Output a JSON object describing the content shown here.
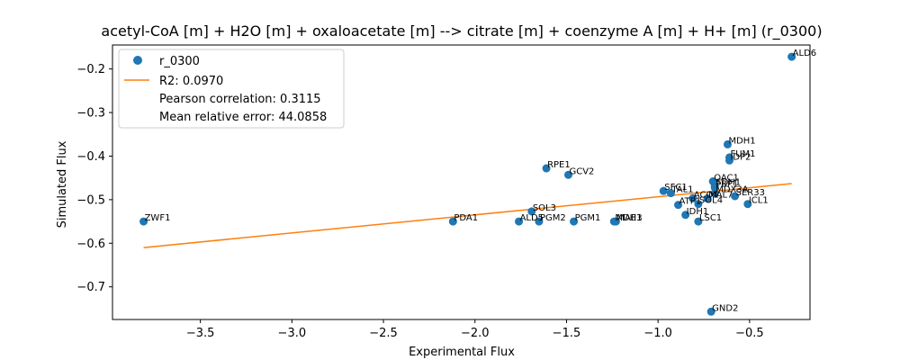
{
  "chart_data": {
    "type": "scatter",
    "title": "acetyl-CoA [m] + H2O [m] + oxaloacetate [m] --> citrate [m] + coenzyme A [m] + H+ [m] (r_0300)",
    "xlabel": "Experimental Flux",
    "ylabel": "Simulated Flux",
    "xlim": [
      -3.98,
      -0.17
    ],
    "ylim": [
      -0.775,
      -0.145
    ],
    "xticks": [
      -3.5,
      -3.0,
      -2.5,
      -2.0,
      -1.5,
      -1.0,
      -0.5
    ],
    "xtick_labels": [
      "−3.5",
      "−3.0",
      "−2.5",
      "−2.0",
      "−1.5",
      "−1.0",
      "−0.5"
    ],
    "yticks": [
      -0.7,
      -0.6,
      -0.5,
      -0.4,
      -0.3,
      -0.2
    ],
    "ytick_labels": [
      "−0.7",
      "−0.6",
      "−0.5",
      "−0.4",
      "−0.3",
      "−0.2"
    ],
    "grid": false,
    "legend_position": "top-left",
    "colors": {
      "points": "#1f77b4",
      "fit_line": "#ff7f0e"
    },
    "legend": {
      "series_name": "r_0300",
      "fit_name": "R2: 0.0970",
      "pearson": "Pearson correlation: 0.3115",
      "mean_error": "Mean relative error: 44.0858"
    },
    "fit_line": {
      "x": [
        -3.81,
        -0.27
      ],
      "y": [
        -0.61,
        -0.463
      ]
    },
    "points": [
      {
        "label": "ALD6",
        "x": -0.27,
        "y": -0.172
      },
      {
        "label": "ZWF1",
        "x": -3.81,
        "y": -0.55
      },
      {
        "label": "PDA1",
        "x": -2.12,
        "y": -0.55
      },
      {
        "label": "RPE1",
        "x": -1.61,
        "y": -0.428
      },
      {
        "label": "GCV2",
        "x": -1.49,
        "y": -0.443
      },
      {
        "label": "SOL3",
        "x": -1.69,
        "y": -0.527
      },
      {
        "label": "ALD5",
        "x": -1.76,
        "y": -0.55
      },
      {
        "label": "PGM2",
        "x": -1.65,
        "y": -0.55
      },
      {
        "label": "PGM1",
        "x": -1.46,
        "y": -0.55
      },
      {
        "label": "MDH3",
        "x": -1.24,
        "y": -0.55
      },
      {
        "label": "MAE1",
        "x": -1.23,
        "y": -0.55
      },
      {
        "label": "SFC1",
        "x": -0.97,
        "y": -0.48
      },
      {
        "label": "TAL1",
        "x": -0.93,
        "y": -0.485
      },
      {
        "label": "MDH1",
        "x": -0.62,
        "y": -0.373
      },
      {
        "label": "FUM1",
        "x": -0.61,
        "y": -0.403
      },
      {
        "label": "IDP2",
        "x": -0.61,
        "y": -0.41
      },
      {
        "label": "OAC1",
        "x": -0.7,
        "y": -0.458
      },
      {
        "label": "SDH1",
        "x": -0.69,
        "y": -0.468
      },
      {
        "label": "FBP1",
        "x": -0.69,
        "y": -0.472
      },
      {
        "label": "MDX3A",
        "x": -0.69,
        "y": -0.485
      },
      {
        "label": "MAL7",
        "x": -0.73,
        "y": -0.497
      },
      {
        "label": "SER33",
        "x": -0.58,
        "y": -0.492
      },
      {
        "label": "ICL1",
        "x": -0.51,
        "y": -0.51
      },
      {
        "label": "ACO1",
        "x": -0.81,
        "y": -0.497
      },
      {
        "label": "ATP1",
        "x": -0.89,
        "y": -0.512
      },
      {
        "label": "IDH1",
        "x": -0.85,
        "y": -0.535
      },
      {
        "label": "SOL4",
        "x": -0.78,
        "y": -0.51
      },
      {
        "label": "LSC1",
        "x": -0.78,
        "y": -0.55
      },
      {
        "label": "GND2",
        "x": -0.71,
        "y": -0.757
      }
    ]
  }
}
